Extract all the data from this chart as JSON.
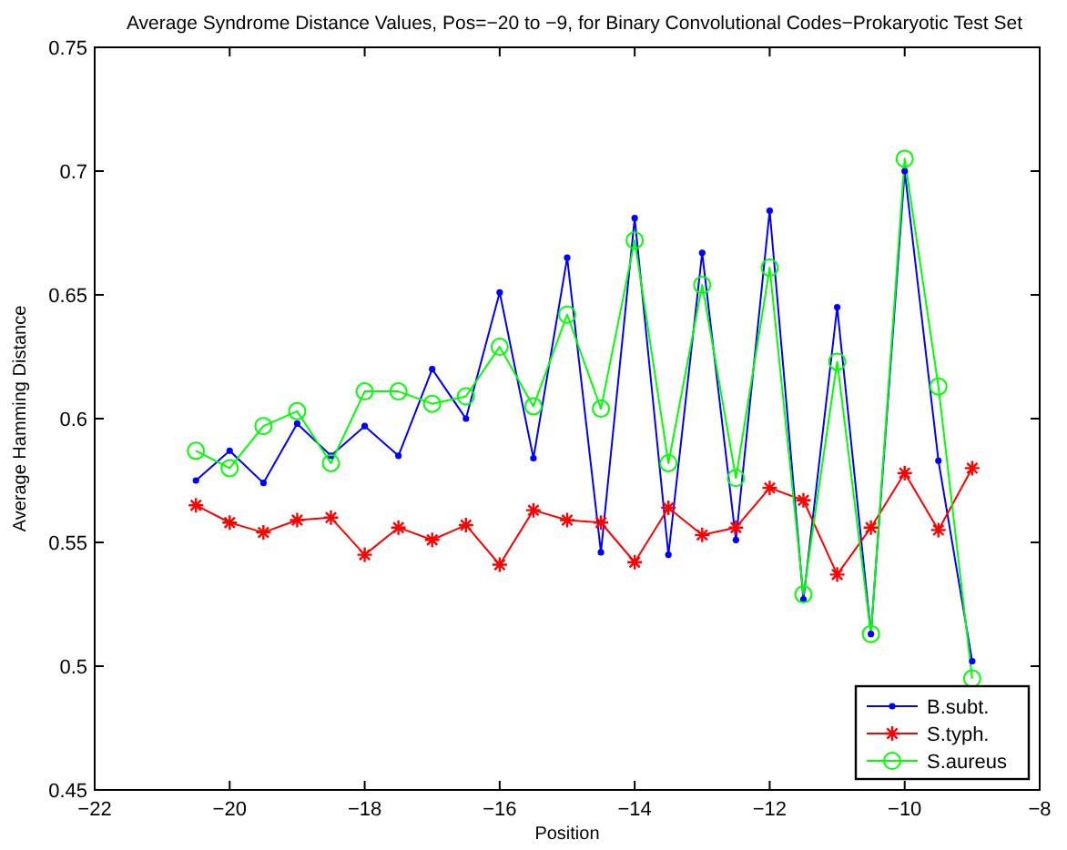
{
  "chart_data": {
    "type": "line",
    "title": "Average Syndrome Distance Values, Pos=−20 to −9, for Binary Convolutional Codes−Prokaryotic Test Set",
    "xlabel": "Position",
    "ylabel": "Average Hamming Distance",
    "x": [
      -20.5,
      -20,
      -19.5,
      -19,
      -18.5,
      -18,
      -17.5,
      -17,
      -16.5,
      -16,
      -15.5,
      -15,
      -14.5,
      -14,
      -13.5,
      -13,
      -12.5,
      -12,
      -11.5,
      -11,
      -10.5,
      -10,
      -9.5,
      -9
    ],
    "series": [
      {
        "name": "B.subt.",
        "color": "#0000ff",
        "marker": "point",
        "values": [
          0.575,
          0.587,
          0.574,
          0.598,
          0.585,
          0.597,
          0.585,
          0.62,
          0.6,
          0.651,
          0.584,
          0.665,
          0.546,
          0.681,
          0.545,
          0.667,
          0.551,
          0.684,
          0.527,
          0.645,
          0.513,
          0.7,
          0.583,
          0.502
        ]
      },
      {
        "name": "S.typh.",
        "color": "#ff0000",
        "marker": "cross",
        "values": [
          0.565,
          0.558,
          0.554,
          0.559,
          0.56,
          0.545,
          0.556,
          0.551,
          0.557,
          0.541,
          0.563,
          0.559,
          0.558,
          0.542,
          0.564,
          0.553,
          0.556,
          0.572,
          0.567,
          0.537,
          0.556,
          0.578,
          0.555,
          0.58
        ]
      },
      {
        "name": "S.aureus",
        "color": "#00ff00",
        "marker": "circle",
        "values": [
          0.587,
          0.58,
          0.597,
          0.603,
          0.582,
          0.611,
          0.611,
          0.606,
          0.609,
          0.629,
          0.605,
          0.642,
          0.604,
          0.672,
          0.582,
          0.654,
          0.576,
          0.661,
          0.529,
          0.623,
          0.513,
          0.705,
          0.613,
          0.495
        ]
      }
    ],
    "xlim": [
      -22,
      -8
    ],
    "xticks": [
      {
        "value": -22,
        "label": "−22"
      },
      {
        "value": -20,
        "label": "−20"
      },
      {
        "value": -18,
        "label": "−18"
      },
      {
        "value": -16,
        "label": "−16"
      },
      {
        "value": -14,
        "label": "−14"
      },
      {
        "value": -12,
        "label": "−12"
      },
      {
        "value": -10,
        "label": "−10"
      },
      {
        "value": -8,
        "label": "−8"
      }
    ],
    "ylim": [
      0.45,
      0.75
    ],
    "yticks": [
      0.45,
      0.5,
      0.55,
      0.6,
      0.65,
      0.7,
      0.75
    ],
    "grid": false,
    "legend": "bottom right",
    "line_style": "solid"
  }
}
